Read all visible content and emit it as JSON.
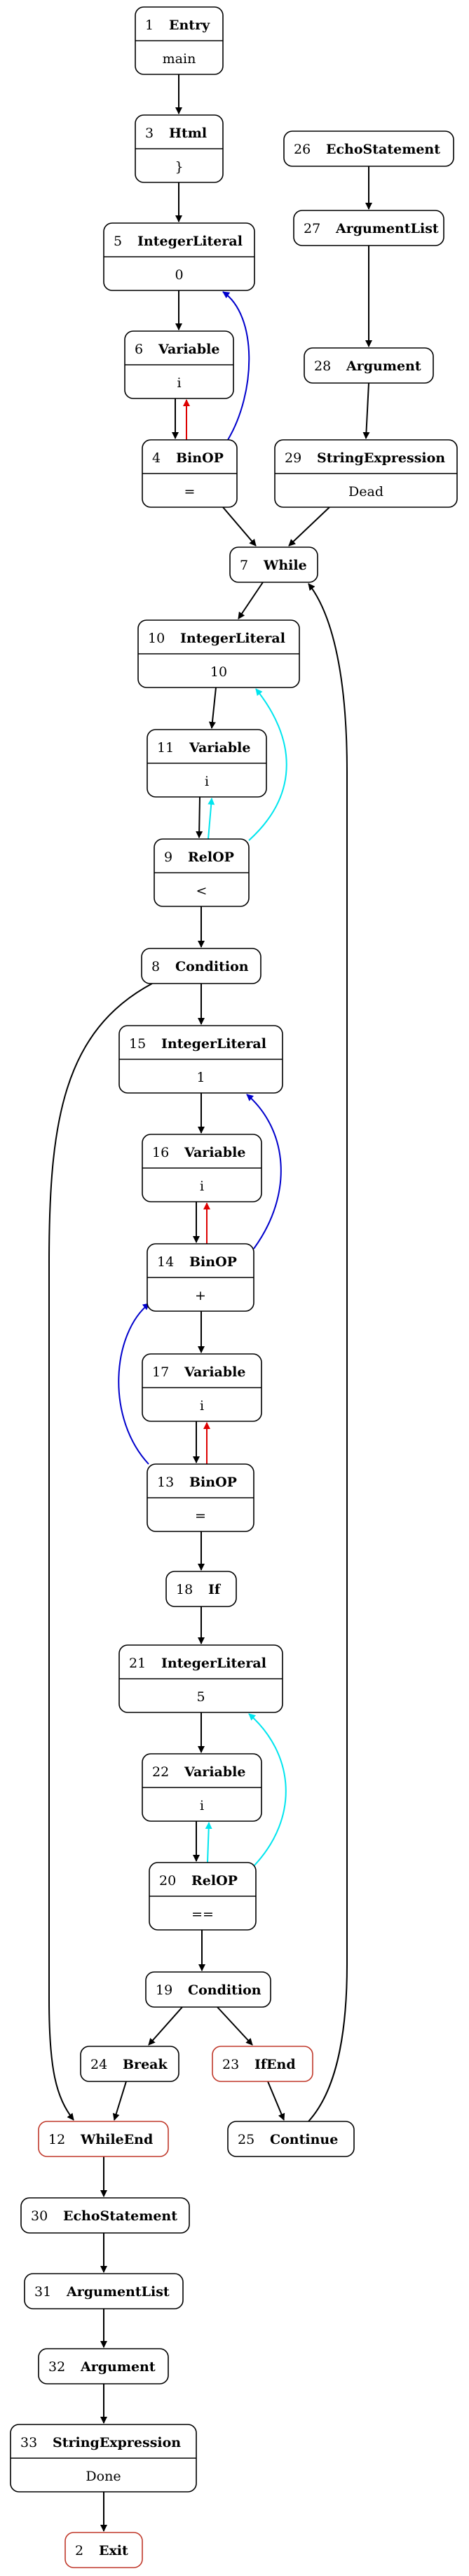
{
  "colors": {
    "control": "#000000",
    "blue": "#0000cc",
    "red": "#dd0000",
    "cyan": "#00e5ee",
    "exit_border": "#c0392b"
  },
  "nodes": [
    {
      "key": "n1",
      "id": "1",
      "label": "Entry",
      "value": "main"
    },
    {
      "key": "n3",
      "id": "3",
      "label": "Html",
      "value": "}"
    },
    {
      "key": "n5",
      "id": "5",
      "label": "IntegerLiteral",
      "value": "0"
    },
    {
      "key": "n6",
      "id": "6",
      "label": "Variable",
      "value": "i"
    },
    {
      "key": "n4",
      "id": "4",
      "label": "BinOP",
      "value": "="
    },
    {
      "key": "n26",
      "id": "26",
      "label": "EchoStatement",
      "value": ""
    },
    {
      "key": "n27",
      "id": "27",
      "label": "ArgumentList",
      "value": ""
    },
    {
      "key": "n28",
      "id": "28",
      "label": "Argument",
      "value": ""
    },
    {
      "key": "n29",
      "id": "29",
      "label": "StringExpression",
      "value": "Dead"
    },
    {
      "key": "n7",
      "id": "7",
      "label": "While",
      "value": ""
    },
    {
      "key": "n10",
      "id": "10",
      "label": "IntegerLiteral",
      "value": "10"
    },
    {
      "key": "n11",
      "id": "11",
      "label": "Variable",
      "value": "i"
    },
    {
      "key": "n9",
      "id": "9",
      "label": "RelOP",
      "value": "<"
    },
    {
      "key": "n8",
      "id": "8",
      "label": "Condition",
      "value": ""
    },
    {
      "key": "n15",
      "id": "15",
      "label": "IntegerLiteral",
      "value": "1"
    },
    {
      "key": "n16",
      "id": "16",
      "label": "Variable",
      "value": "i"
    },
    {
      "key": "n14",
      "id": "14",
      "label": "BinOP",
      "value": "+"
    },
    {
      "key": "n17",
      "id": "17",
      "label": "Variable",
      "value": "i"
    },
    {
      "key": "n13",
      "id": "13",
      "label": "BinOP",
      "value": "="
    },
    {
      "key": "n18",
      "id": "18",
      "label": "If",
      "value": ""
    },
    {
      "key": "n21",
      "id": "21",
      "label": "IntegerLiteral",
      "value": "5"
    },
    {
      "key": "n22",
      "id": "22",
      "label": "Variable",
      "value": "i"
    },
    {
      "key": "n20",
      "id": "20",
      "label": "RelOP",
      "value": "=="
    },
    {
      "key": "n19",
      "id": "19",
      "label": "Condition",
      "value": ""
    },
    {
      "key": "n24",
      "id": "24",
      "label": "Break",
      "value": ""
    },
    {
      "key": "n23",
      "id": "23",
      "label": "IfEnd",
      "value": ""
    },
    {
      "key": "n12",
      "id": "12",
      "label": "WhileEnd",
      "value": ""
    },
    {
      "key": "n25",
      "id": "25",
      "label": "Continue",
      "value": ""
    },
    {
      "key": "n30",
      "id": "30",
      "label": "EchoStatement",
      "value": ""
    },
    {
      "key": "n31",
      "id": "31",
      "label": "ArgumentList",
      "value": ""
    },
    {
      "key": "n32",
      "id": "32",
      "label": "Argument",
      "value": ""
    },
    {
      "key": "n33",
      "id": "33",
      "label": "StringExpression",
      "value": "Done"
    },
    {
      "key": "n2",
      "id": "2",
      "label": "Exit",
      "value": ""
    }
  ]
}
